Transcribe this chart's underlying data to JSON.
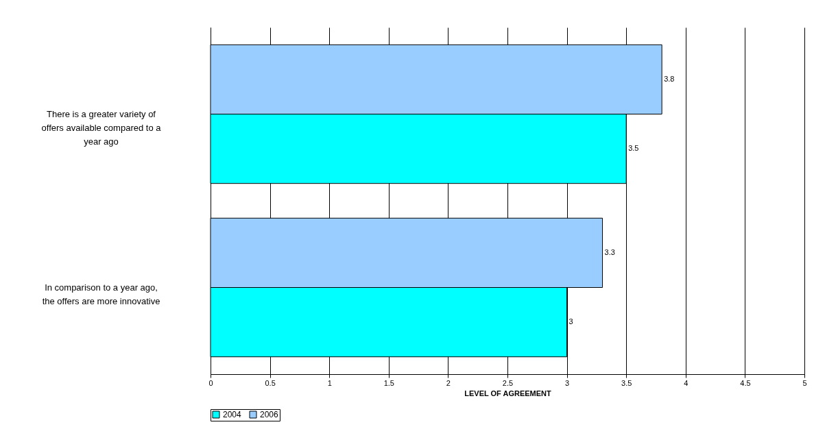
{
  "chart_data": {
    "type": "bar",
    "orientation": "horizontal",
    "categories": [
      "There is a greater variety of offers available compared to a year ago",
      "In comparison to a year ago, the offers are more innovative"
    ],
    "series": [
      {
        "name": "2004",
        "color": "#00ffff",
        "values": [
          3.5,
          3
        ]
      },
      {
        "name": "2006",
        "color": "#99ccff",
        "values": [
          3.8,
          3.3
        ]
      }
    ],
    "xlim": [
      0,
      5
    ],
    "xticks": [
      0,
      0.5,
      1,
      1.5,
      2,
      2.5,
      3,
      3.5,
      4,
      4.5,
      5
    ],
    "xlabel": "LEVEL OF AGREEMENT",
    "grid": "x",
    "legend": "bottom",
    "data_labels": true
  }
}
